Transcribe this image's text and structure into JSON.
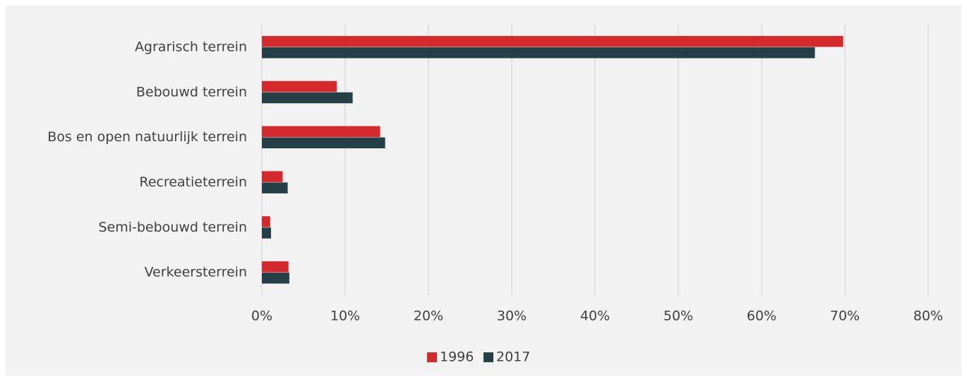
{
  "chart_data": {
    "type": "bar",
    "orientation": "horizontal",
    "categories": [
      "Agrarisch terrein",
      "Bebouwd terrein",
      "Bos en open natuurlijk terrein",
      "Recreatieterrein",
      "Semi-bebouwd terrein",
      "Verkeersterrein"
    ],
    "series": [
      {
        "name": "1996",
        "color": "#d42a2e",
        "values": [
          69.8,
          9.0,
          14.2,
          2.5,
          1.0,
          3.2
        ]
      },
      {
        "name": "2017",
        "color": "#253f47",
        "values": [
          66.4,
          10.9,
          14.8,
          3.1,
          1.1,
          3.3
        ]
      }
    ],
    "xlim": [
      0,
      80
    ],
    "xticks": [
      {
        "value": 0,
        "label": "0%"
      },
      {
        "value": 10,
        "label": "10%"
      },
      {
        "value": 20,
        "label": "20%"
      },
      {
        "value": 30,
        "label": "30%"
      },
      {
        "value": 40,
        "label": "40%"
      },
      {
        "value": 50,
        "label": "50%"
      },
      {
        "value": 60,
        "label": "60%"
      },
      {
        "value": 70,
        "label": "70%"
      },
      {
        "value": 80,
        "label": "80%"
      }
    ],
    "grid": true,
    "legend": "bottom"
  }
}
